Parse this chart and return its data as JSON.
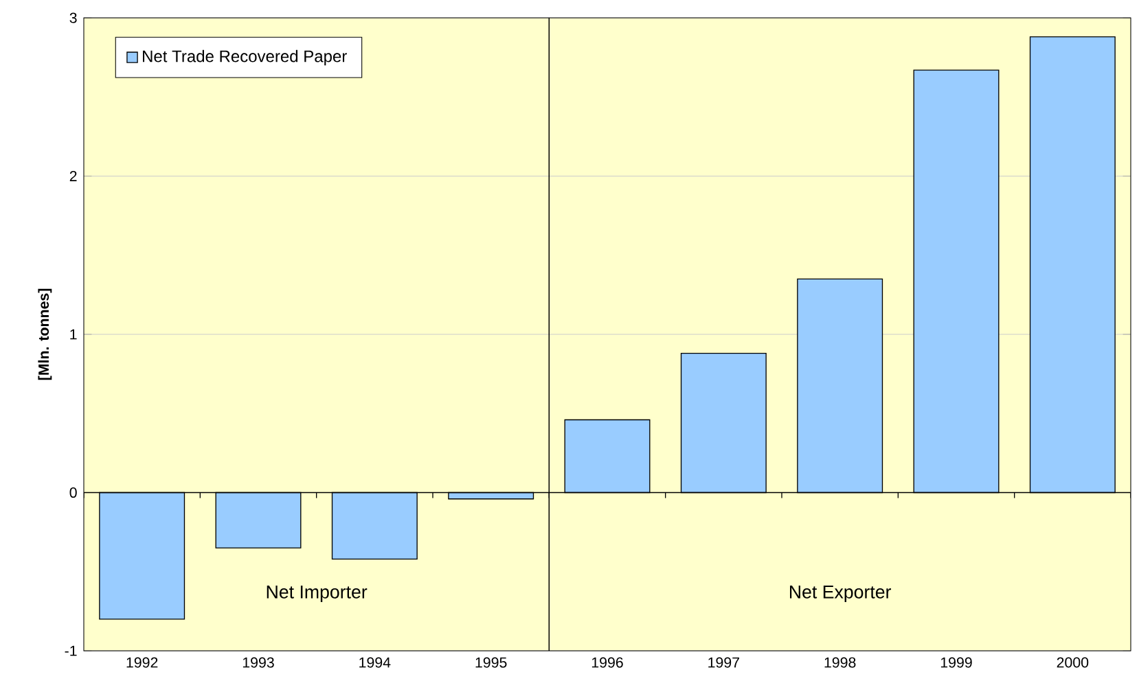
{
  "chart_data": {
    "type": "bar",
    "ylabel": "[Mln. tonnes]",
    "categories": [
      "1992",
      "1993",
      "1994",
      "1995",
      "1996",
      "1997",
      "1998",
      "1999",
      "2000"
    ],
    "series": [
      {
        "name": "Net Trade Recovered Paper",
        "color": "#99ccff",
        "values": [
          -0.8,
          -0.35,
          -0.42,
          -0.04,
          0.46,
          0.88,
          1.35,
          2.67,
          2.88
        ]
      }
    ],
    "ylim": [
      -1,
      3
    ],
    "yticks": [
      -1,
      0,
      1,
      2,
      3
    ],
    "grid": "y",
    "legend": "top left",
    "annotations": [
      "Net Importer",
      "Net Exporter"
    ]
  }
}
